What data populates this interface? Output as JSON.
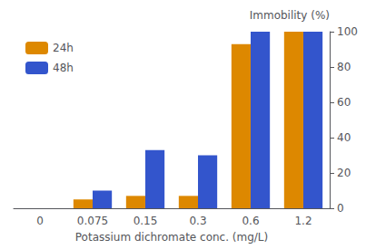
{
  "chart_data": {
    "type": "bar",
    "categories": [
      "0",
      "0.075",
      "0.15",
      "0.3",
      "0.6",
      "1.2"
    ],
    "series": [
      {
        "name": "24h",
        "color": "#dd8800",
        "values": [
          0,
          5,
          7,
          7,
          93,
          100
        ]
      },
      {
        "name": "48h",
        "color": "#3355cc",
        "values": [
          0,
          10,
          33,
          30,
          100,
          100
        ]
      }
    ],
    "xlabel": "Potassium dichromate conc. (mg/L)",
    "ylabel": "Immobility (%)",
    "ylim": [
      0,
      100
    ],
    "yticks": [
      0,
      20,
      40,
      60,
      80,
      100
    ],
    "grid": false,
    "legend": "upper left"
  }
}
